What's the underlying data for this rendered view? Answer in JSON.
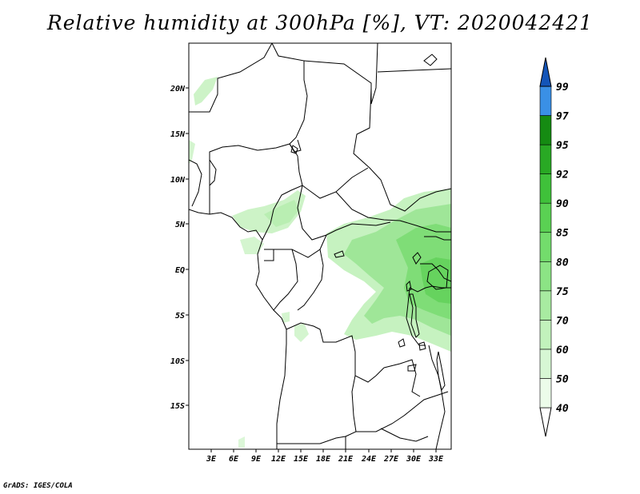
{
  "title": "Relative humidity at 300hPa [%], VT: 2020042421",
  "credit": "GrADS: IGES/COLA",
  "map": {
    "variable": "Relative humidity",
    "level": "300hPa",
    "unit": "%",
    "valid_time": "2020042421",
    "lat_labels": [
      "20N",
      "15N",
      "10N",
      "5N",
      "EQ",
      "5S",
      "10S",
      "15S"
    ],
    "lon_labels": [
      "3E",
      "6E",
      "9E",
      "12E",
      "15E",
      "18E",
      "21E",
      "24E",
      "27E",
      "30E",
      "33E"
    ]
  },
  "colorbar": {
    "levels": [
      "40",
      "50",
      "60",
      "70",
      "75",
      "80",
      "85",
      "90",
      "92",
      "95",
      "97",
      "99"
    ],
    "colors": [
      "#ecfcea",
      "#d7f7d4",
      "#c2f2bc",
      "#a8eba1",
      "#8ce485",
      "#73dc6c",
      "#5ad153",
      "#3fc13a",
      "#29a924",
      "#158b12",
      "#3a90e6",
      "#1f6fd6",
      "#1455b8"
    ],
    "below_color": "#ffffff"
  }
}
